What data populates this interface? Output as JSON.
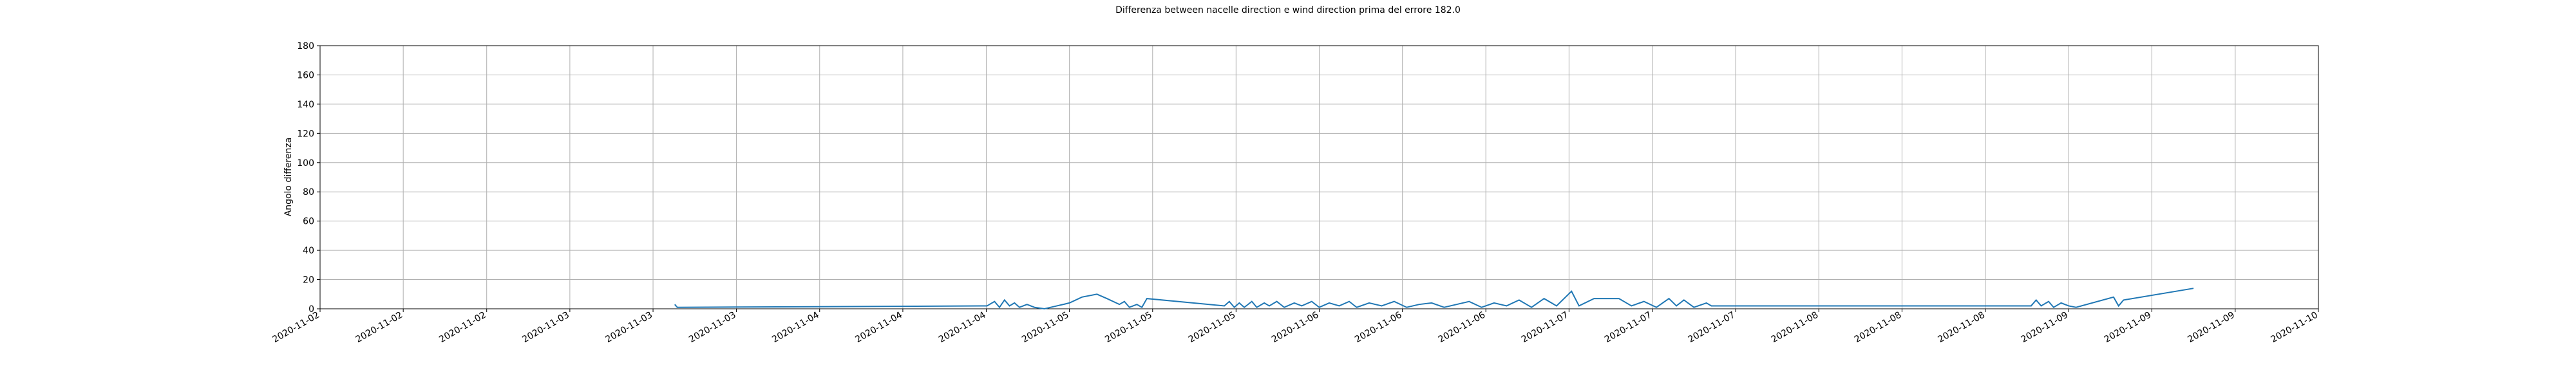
{
  "chart_data": {
    "type": "line",
    "title": "Differenza between nacelle direction e wind direction prima del errore 182.0",
    "y_label": "Angolo differenza",
    "x": [
      1.42,
      1.43,
      2.67,
      2.7,
      2.72,
      2.74,
      2.76,
      2.78,
      2.8,
      2.83,
      2.86,
      2.9,
      2.95,
      3.0,
      3.05,
      3.11,
      3.15,
      3.2,
      3.22,
      3.24,
      3.27,
      3.29,
      3.31,
      3.62,
      3.64,
      3.66,
      3.68,
      3.7,
      3.73,
      3.75,
      3.78,
      3.8,
      3.83,
      3.86,
      3.9,
      3.93,
      3.97,
      4.0,
      4.04,
      4.08,
      4.12,
      4.15,
      4.2,
      4.25,
      4.3,
      4.35,
      4.4,
      4.45,
      4.5,
      4.55,
      4.6,
      4.65,
      4.7,
      4.75,
      4.8,
      4.85,
      4.9,
      4.95,
      5.01,
      5.04,
      5.1,
      5.2,
      5.25,
      5.3,
      5.35,
      5.4,
      5.43,
      5.46,
      5.5,
      5.55,
      5.57,
      6.85,
      6.87,
      6.89,
      6.92,
      6.94,
      6.97,
      7.0,
      7.03,
      7.18,
      7.2,
      7.22,
      7.5
    ],
    "series": [
      {
        "name": "Angolo differenza",
        "color": "#1f77b4",
        "values": [
          3,
          1,
          2,
          5,
          1,
          6,
          2,
          4,
          1,
          3,
          1,
          0,
          2,
          4,
          8,
          10,
          7,
          3,
          5,
          1,
          3,
          1,
          7,
          2,
          5,
          1,
          4,
          1,
          5,
          1,
          4,
          2,
          5,
          1,
          4,
          2,
          5,
          1,
          4,
          2,
          5,
          1,
          4,
          2,
          5,
          1,
          3,
          4,
          1,
          3,
          5,
          1,
          4,
          2,
          6,
          1,
          7,
          2,
          12,
          2,
          7,
          7,
          2,
          5,
          1,
          7,
          2,
          6,
          1,
          4,
          2,
          2,
          6,
          2,
          5,
          1,
          4,
          2,
          1,
          8,
          2,
          6,
          14
        ]
      }
    ],
    "xlim": [
      0,
      8
    ],
    "xticks": [
      {
        "value": 0,
        "label": "2020-11-02"
      },
      {
        "value": 0.333,
        "label": "2020-11-02"
      },
      {
        "value": 0.667,
        "label": "2020-11-02"
      },
      {
        "value": 1,
        "label": "2020-11-03"
      },
      {
        "value": 1.333,
        "label": "2020-11-03"
      },
      {
        "value": 1.667,
        "label": "2020-11-03"
      },
      {
        "value": 2,
        "label": "2020-11-04"
      },
      {
        "value": 2.333,
        "label": "2020-11-04"
      },
      {
        "value": 2.667,
        "label": "2020-11-04"
      },
      {
        "value": 3,
        "label": "2020-11-05"
      },
      {
        "value": 3.333,
        "label": "2020-11-05"
      },
      {
        "value": 3.667,
        "label": "2020-11-05"
      },
      {
        "value": 4,
        "label": "2020-11-06"
      },
      {
        "value": 4.333,
        "label": "2020-11-06"
      },
      {
        "value": 4.667,
        "label": "2020-11-06"
      },
      {
        "value": 5,
        "label": "2020-11-07"
      },
      {
        "value": 5.333,
        "label": "2020-11-07"
      },
      {
        "value": 5.667,
        "label": "2020-11-07"
      },
      {
        "value": 6,
        "label": "2020-11-08"
      },
      {
        "value": 6.333,
        "label": "2020-11-08"
      },
      {
        "value": 6.667,
        "label": "2020-11-08"
      },
      {
        "value": 7,
        "label": "2020-11-09"
      },
      {
        "value": 7.333,
        "label": "2020-11-09"
      },
      {
        "value": 7.667,
        "label": "2020-11-09"
      },
      {
        "value": 8,
        "label": "2020-11-10"
      }
    ],
    "ylim": [
      0,
      180
    ],
    "yticks": [
      0,
      20,
      40,
      60,
      80,
      100,
      120,
      140,
      160,
      180
    ],
    "grid": true
  }
}
